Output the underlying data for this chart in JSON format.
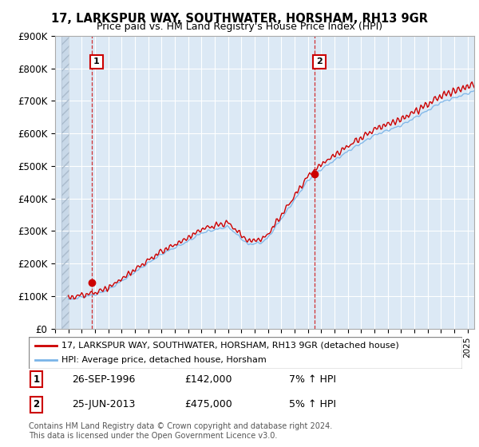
{
  "title": "17, LARKSPUR WAY, SOUTHWATER, HORSHAM, RH13 9GR",
  "subtitle": "Price paid vs. HM Land Registry's House Price Index (HPI)",
  "ylim": [
    0,
    900000
  ],
  "yticks": [
    0,
    100000,
    200000,
    300000,
    400000,
    500000,
    600000,
    700000,
    800000,
    900000
  ],
  "ytick_labels": [
    "£0",
    "£100K",
    "£200K",
    "£300K",
    "£400K",
    "£500K",
    "£600K",
    "£700K",
    "£800K",
    "£900K"
  ],
  "xlim_start": 1994.5,
  "xlim_end": 2025.5,
  "hpi_color": "#7ab4e8",
  "price_color": "#cc0000",
  "purchase1_year": 1996.73,
  "purchase1_price": 142000,
  "purchase2_year": 2013.48,
  "purchase2_price": 475000,
  "vline1_year": 1996.73,
  "vline2_year": 2013.48,
  "legend_line1": "17, LARKSPUR WAY, SOUTHWATER, HORSHAM, RH13 9GR (detached house)",
  "legend_line2": "HPI: Average price, detached house, Horsham",
  "annotation1_date": "26-SEP-1996",
  "annotation1_price": "£142,000",
  "annotation1_hpi": "7% ↑ HPI",
  "annotation2_date": "25-JUN-2013",
  "annotation2_price": "£475,000",
  "annotation2_hpi": "5% ↑ HPI",
  "footer": "Contains HM Land Registry data © Crown copyright and database right 2024.\nThis data is licensed under the Open Government Licence v3.0.",
  "background_color": "#ffffff",
  "plot_bg_color": "#dce9f5",
  "grid_color": "#ffffff"
}
